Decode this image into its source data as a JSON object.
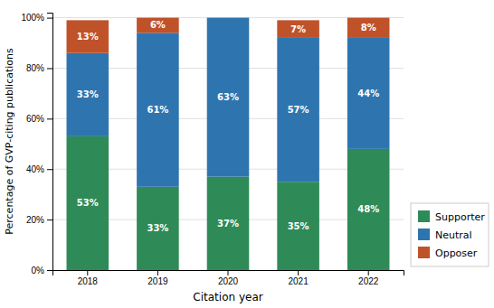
{
  "chart_data": {
    "type": "bar",
    "stacked": true,
    "categories": [
      "2018",
      "2019",
      "2020",
      "2021",
      "2022"
    ],
    "series": [
      {
        "name": "Supporter",
        "color": "#2e8b57",
        "values": [
          53,
          33,
          37,
          35,
          48
        ],
        "value_labels": [
          "53%",
          "33%",
          "37%",
          "35%",
          "48%"
        ]
      },
      {
        "name": "Neutral",
        "color": "#2e75b0",
        "values": [
          33,
          61,
          63,
          57,
          44
        ],
        "value_labels": [
          "33%",
          "61%",
          "63%",
          "57%",
          "44%"
        ]
      },
      {
        "name": "Opposer",
        "color": "#c0522a",
        "values": [
          13,
          6,
          0,
          7,
          8
        ],
        "value_labels": [
          "13%",
          "6%",
          null,
          "7%",
          "8%"
        ]
      }
    ],
    "data_labels": true,
    "xlabel": "Citation year",
    "ylabel": "Percentage of GVP-citing publications",
    "ylim": [
      0,
      102
    ],
    "yticks": [
      {
        "value": 0,
        "label": "0%"
      },
      {
        "value": 20,
        "label": "20%"
      },
      {
        "value": 40,
        "label": "40%"
      },
      {
        "value": 60,
        "label": "60%"
      },
      {
        "value": 80,
        "label": "80%"
      },
      {
        "value": 100,
        "label": "100%"
      }
    ],
    "grid": true,
    "legend": "right"
  }
}
